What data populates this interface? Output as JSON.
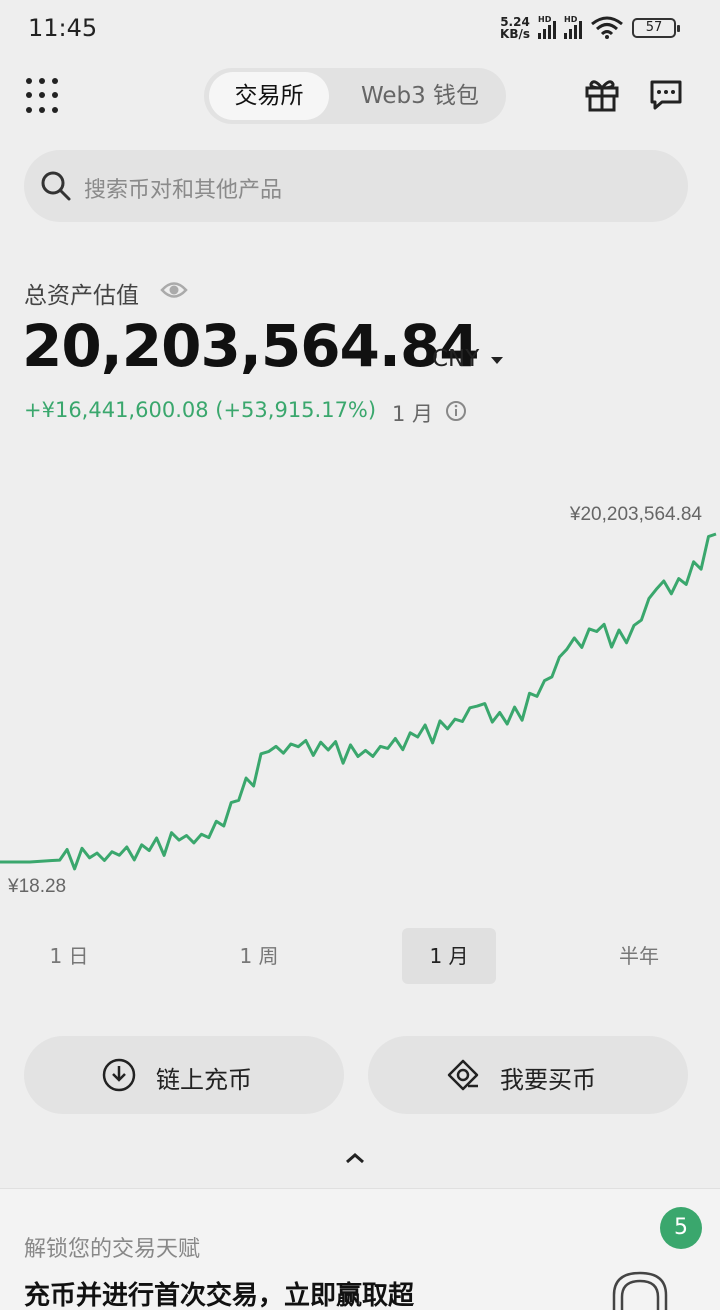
{
  "status_bar": {
    "time": "11:45",
    "net_speed_value": "5.24",
    "net_speed_unit": "KB/s",
    "hd_label": "HD",
    "battery": "57"
  },
  "header": {
    "tabs": [
      {
        "label": "交易所",
        "active": true
      },
      {
        "label": "Web3 钱包",
        "active": false
      }
    ]
  },
  "search": {
    "placeholder": "搜索币对和其他产品"
  },
  "portfolio": {
    "label": "总资产估值",
    "total": "20,203,564.84",
    "currency": "CNY",
    "pnl": "+¥16,441,600.08 (+53,915.17%)",
    "period": "1 月",
    "positive_color": "#3aa76d"
  },
  "chart_data": {
    "type": "line",
    "max_label": "¥20,203,564.84",
    "min_label": "¥18.28",
    "series": [
      {
        "values": [
          18.28,
          18.28,
          120000,
          260000,
          420000,
          700000,
          1350000,
          1500000,
          3800000,
          6800000,
          7100000,
          6900000,
          6500000,
          7000000,
          7700000,
          8200000,
          9600000,
          8500000,
          10200000,
          13100000,
          14200000,
          13500000,
          16800000,
          17100000,
          20203564.84
        ]
      }
    ],
    "grid": false,
    "line_color": "#3aa76d"
  },
  "ranges": [
    {
      "label": "1 日",
      "active": false
    },
    {
      "label": "1 周",
      "active": false
    },
    {
      "label": "1 月",
      "active": true
    },
    {
      "label": "半年",
      "active": false
    }
  ],
  "actions": {
    "deposit_label": "链上充币",
    "buy_label": "我要买币"
  },
  "sheet": {
    "subtitle": "解锁您的交易天赋",
    "title": "充币并进行首次交易，立即赢取超",
    "badge": "5"
  }
}
